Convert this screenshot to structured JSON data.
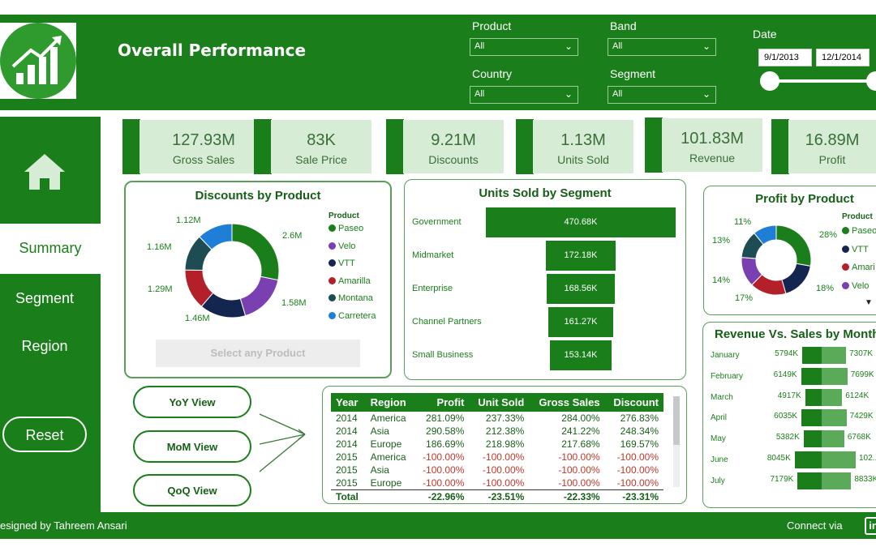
{
  "header": {
    "title": "Overall Performance",
    "filters": {
      "product": {
        "label": "Product",
        "value": "All"
      },
      "band": {
        "label": "Band",
        "value": "All"
      },
      "country": {
        "label": "Country",
        "value": "All"
      },
      "segment": {
        "label": "Segment",
        "value": "All"
      },
      "date": {
        "label": "Date",
        "start": "9/1/2013",
        "end": "12/1/2014"
      }
    }
  },
  "nav": {
    "summary": "Summary",
    "segment": "Segment",
    "region": "Region",
    "reset": "Reset"
  },
  "kpis": [
    {
      "value": "127.93M",
      "label": "Gross Sales"
    },
    {
      "value": "83K",
      "label": "Sale Price"
    },
    {
      "value": "9.21M",
      "label": "Discounts"
    },
    {
      "value": "1.13M",
      "label": "Units Sold"
    },
    {
      "value": "101.83M",
      "label": "Revenue"
    },
    {
      "value": "16.89M",
      "label": "Profit"
    }
  ],
  "discounts": {
    "title": "Discounts by Product",
    "legend_title": "Product",
    "button": "Select any Product",
    "labels": [
      "1.12M",
      "2.6M",
      "1.16M",
      "1.29M",
      "1.58M",
      "1.46M"
    ],
    "legend": [
      {
        "name": "Paseo",
        "color": "#1a7f1a"
      },
      {
        "name": "Velo",
        "color": "#7a3fb0"
      },
      {
        "name": "VTT",
        "color": "#14264f"
      },
      {
        "name": "Amarilla",
        "color": "#b3202a"
      },
      {
        "name": "Montana",
        "color": "#1d4d52"
      },
      {
        "name": "Carretera",
        "color": "#1f7fd6"
      }
    ]
  },
  "units_segment": {
    "title": "Units Sold by Segment",
    "rows": [
      {
        "label": "Government",
        "value": "470.68K",
        "v": 470.68
      },
      {
        "label": "Midmarket",
        "value": "172.18K",
        "v": 172.18
      },
      {
        "label": "Enterprise",
        "value": "168.56K",
        "v": 168.56
      },
      {
        "label": "Channel Partners",
        "value": "161.27K",
        "v": 161.27
      },
      {
        "label": "Small Business",
        "value": "153.14K",
        "v": 153.14
      }
    ]
  },
  "profit_product": {
    "title": "Profit by Product",
    "legend_title": "Product",
    "labels": [
      "11%",
      "28%",
      "13%",
      "14%",
      "18%",
      "17%"
    ],
    "legend": [
      {
        "name": "Paseo",
        "color": "#1a7f1a"
      },
      {
        "name": "VTT",
        "color": "#14264f"
      },
      {
        "name": "Amari",
        "color": "#b3202a"
      },
      {
        "name": "Velo",
        "color": "#7a3fb0"
      }
    ]
  },
  "views": {
    "yoy": "YoY View",
    "mom": "MoM View",
    "qoq": "QoQ View"
  },
  "table": {
    "headers": [
      "Year",
      "Region",
      "Profit",
      "Unit Sold",
      "Gross Sales",
      "Discount"
    ],
    "rows": [
      [
        "2014",
        "America",
        "281.09%",
        "237.33%",
        "284.00%",
        "276.83%"
      ],
      [
        "2014",
        "Asia",
        "290.58%",
        "212.38%",
        "241.22%",
        "248.34%"
      ],
      [
        "2014",
        "Europe",
        "186.69%",
        "218.98%",
        "217.68%",
        "169.57%"
      ],
      [
        "2015",
        "America",
        "-100.00%",
        "-100.00%",
        "-100.00%",
        "-100.00%"
      ],
      [
        "2015",
        "Asia",
        "-100.00%",
        "-100.00%",
        "-100.00%",
        "-100.00%"
      ],
      [
        "2015",
        "Europe",
        "-100.00%",
        "-100.00%",
        "-100.00%",
        "-100.00%"
      ]
    ],
    "total": [
      "Total",
      "",
      "-22.96%",
      "-23.51%",
      "-22.33%",
      "-23.31%"
    ]
  },
  "revenue_sales": {
    "title": "Revenue Vs. Sales by Month",
    "rows": [
      {
        "month": "January",
        "rev": "5794K",
        "sales": "7307K",
        "r": 5794,
        "s": 7307
      },
      {
        "month": "February",
        "rev": "6149K",
        "sales": "7699K",
        "r": 6149,
        "s": 7699
      },
      {
        "month": "March",
        "rev": "4917K",
        "sales": "6124K",
        "r": 4917,
        "s": 6124
      },
      {
        "month": "April",
        "rev": "6035K",
        "sales": "7429K",
        "r": 6035,
        "s": 7429
      },
      {
        "month": "May",
        "rev": "5382K",
        "sales": "6768K",
        "r": 5382,
        "s": 6768
      },
      {
        "month": "June",
        "rev": "8045K",
        "sales": "102...",
        "r": 8045,
        "s": 10200
      },
      {
        "month": "July",
        "rev": "7179K",
        "sales": "8833K",
        "r": 7179,
        "s": 8833
      }
    ]
  },
  "footer": {
    "credit": "esigned by Tahreem Ansari",
    "connect": "Connect via",
    "linkedin": "in"
  }
}
